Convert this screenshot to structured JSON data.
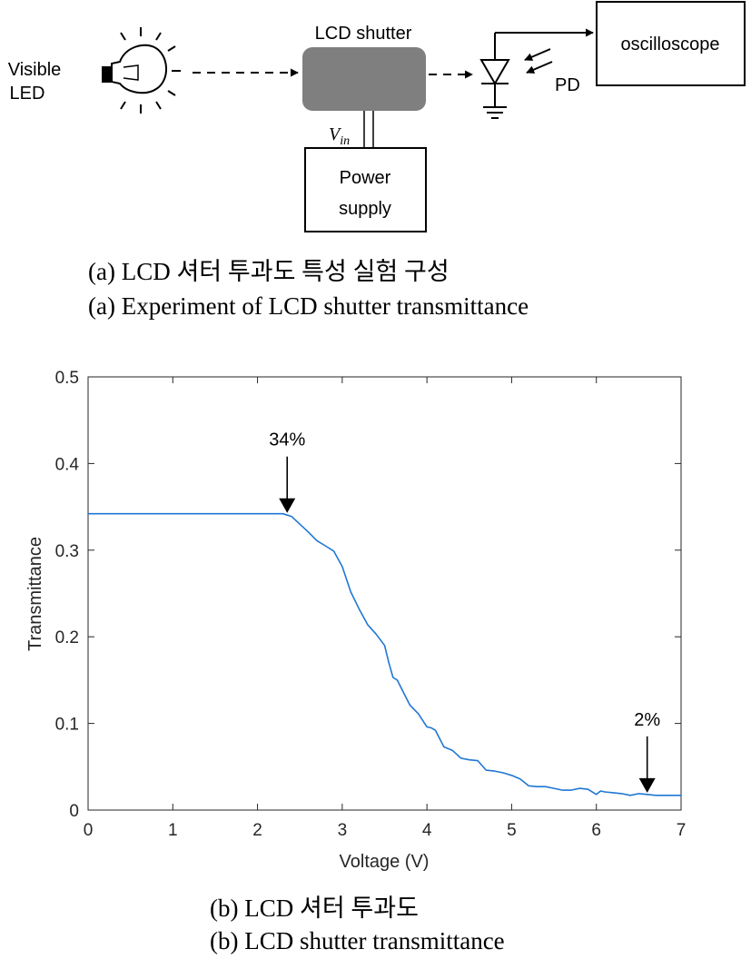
{
  "diagram": {
    "source_label": [
      "Visible",
      "LED"
    ],
    "shutter_label": "LCD shutter",
    "vin_label": "V",
    "vin_subscript": "in",
    "power_label": [
      "Power",
      "supply"
    ],
    "scope_label": "oscilloscope",
    "pd_label": "PD"
  },
  "captions": {
    "a_ko": "(a) LCD 셔터 투과도 특성 실험 구성",
    "a_en": "(a) Experiment of LCD shutter transmittance",
    "b_ko": "(b) LCD 셔터 투과도",
    "b_en": "(b) LCD shutter transmittance"
  },
  "colors": {
    "line": "#1f77d4",
    "shutter": "#7f7f7f",
    "axis": "#262626"
  },
  "chart_data": {
    "type": "line",
    "xlabel": "Voltage (V)",
    "ylabel": "Transmittance",
    "xlim": [
      0,
      7
    ],
    "ylim": [
      0,
      0.5
    ],
    "xticks": [
      0,
      1,
      2,
      3,
      4,
      5,
      6,
      7
    ],
    "yticks": [
      0,
      0.1,
      0.2,
      0.3,
      0.4,
      0.5
    ],
    "grid": false,
    "series": [
      {
        "x": [
          0,
          0.5,
          1.0,
          1.5,
          2.0,
          2.3,
          2.4,
          2.5,
          2.6,
          2.7,
          2.8,
          2.9,
          3.0,
          3.1,
          3.2,
          3.3,
          3.4,
          3.5,
          3.55,
          3.6,
          3.65,
          3.7,
          3.8,
          3.9,
          4.0,
          4.05,
          4.1,
          4.2,
          4.3,
          4.4,
          4.5,
          4.6,
          4.7,
          4.8,
          4.9,
          5.0,
          5.1,
          5.2,
          5.3,
          5.4,
          5.5,
          5.6,
          5.7,
          5.8,
          5.9,
          6.0,
          6.05,
          6.1,
          6.2,
          6.3,
          6.4,
          6.5,
          6.6,
          6.7,
          6.8,
          6.9,
          7.0
        ],
        "y": [
          0.342,
          0.342,
          0.342,
          0.342,
          0.342,
          0.342,
          0.339,
          0.33,
          0.321,
          0.311,
          0.305,
          0.299,
          0.281,
          0.252,
          0.232,
          0.214,
          0.203,
          0.19,
          0.17,
          0.153,
          0.15,
          0.14,
          0.121,
          0.111,
          0.096,
          0.095,
          0.092,
          0.073,
          0.069,
          0.06,
          0.058,
          0.057,
          0.046,
          0.045,
          0.043,
          0.04,
          0.036,
          0.028,
          0.027,
          0.027,
          0.025,
          0.023,
          0.023,
          0.025,
          0.024,
          0.018,
          0.022,
          0.021,
          0.02,
          0.019,
          0.017,
          0.019,
          0.018,
          0.017,
          0.017,
          0.017,
          0.017
        ]
      }
    ],
    "annotations": [
      {
        "text": "34%",
        "x": 2.35,
        "y": 0.342
      },
      {
        "text": "2%",
        "x": 6.6,
        "y": 0.019
      }
    ]
  }
}
